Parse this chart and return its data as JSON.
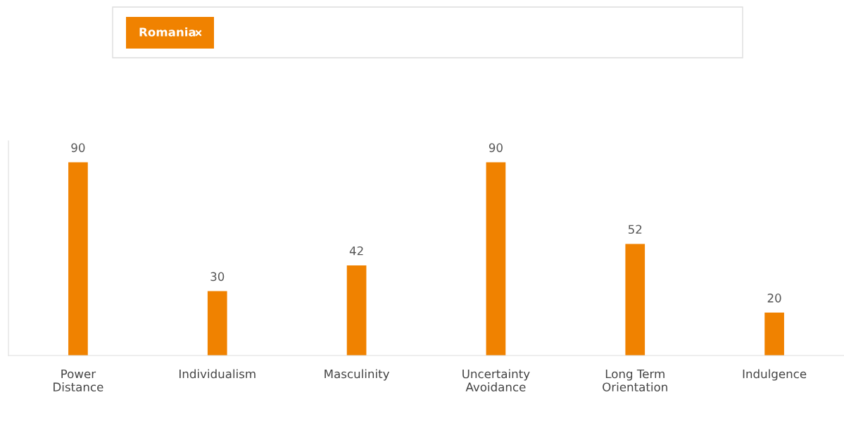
{
  "chart_data": {
    "type": "bar",
    "categories": [
      "Power\nDistance",
      "Individualism",
      "Masculinity",
      "Uncertainty\nAvoidance",
      "Long Term\nOrientation",
      "Indulgence"
    ],
    "series": [
      {
        "name": "Romania",
        "color": "#f08200",
        "values": [
          90,
          30,
          42,
          90,
          52,
          20
        ]
      }
    ],
    "ylim": [
      0,
      100
    ],
    "tick_labels": "x",
    "data_labels": true,
    "grid": false,
    "legend": "top left"
  }
}
